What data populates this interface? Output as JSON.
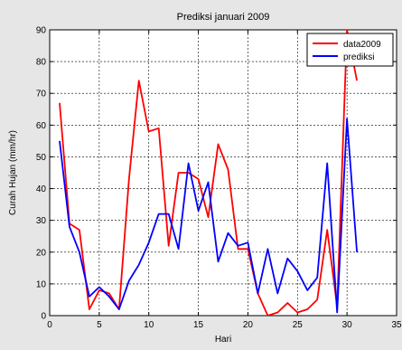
{
  "chart_data": {
    "type": "line",
    "title": "Prediksi januari 2009",
    "xlabel": "Hari",
    "ylabel": "Curah Hujan (mm/hr)",
    "xlim": [
      0,
      35
    ],
    "ylim": [
      0,
      90
    ],
    "xticks": [
      0,
      5,
      10,
      15,
      20,
      25,
      30,
      35
    ],
    "yticks": [
      0,
      10,
      20,
      30,
      40,
      50,
      60,
      70,
      80,
      90
    ],
    "grid": true,
    "legend_position": "top-right",
    "series": [
      {
        "name": "data2009",
        "color": "#ff0000",
        "x": [
          1,
          2,
          3,
          4,
          5,
          6,
          7,
          8,
          9,
          10,
          11,
          12,
          13,
          14,
          15,
          16,
          17,
          18,
          19,
          20,
          21,
          22,
          23,
          24,
          25,
          26,
          27,
          28,
          29,
          30,
          31
        ],
        "y": [
          67,
          29,
          27,
          2,
          8,
          7,
          2,
          43,
          74,
          58,
          59,
          22,
          45,
          45,
          43,
          31,
          54,
          46,
          21,
          21,
          7,
          0,
          1,
          4,
          1,
          2,
          5,
          27,
          3,
          90,
          74
        ]
      },
      {
        "name": "prediksi",
        "color": "#0000ff",
        "x": [
          1,
          2,
          3,
          4,
          5,
          6,
          7,
          8,
          9,
          10,
          11,
          12,
          13,
          14,
          15,
          16,
          17,
          18,
          19,
          20,
          21,
          22,
          23,
          24,
          25,
          26,
          27,
          28,
          29,
          30,
          31
        ],
        "y": [
          55,
          28,
          20,
          6,
          9,
          6,
          2,
          11,
          16,
          23,
          32,
          32,
          21,
          48,
          33,
          42,
          17,
          26,
          22,
          23,
          7,
          21,
          7,
          18,
          14,
          8,
          12,
          48,
          1,
          62,
          20
        ]
      }
    ]
  }
}
